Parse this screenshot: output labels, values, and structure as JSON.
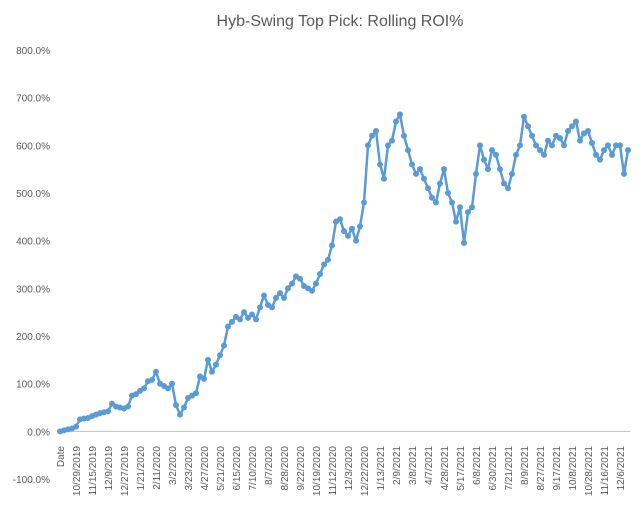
{
  "chart_data": {
    "type": "line",
    "title": "Hyb-Swing Top Pick: Rolling ROI%",
    "categories": [
      "Date",
      null,
      null,
      null,
      "10/29/2019",
      null,
      null,
      null,
      "11/15/2019",
      null,
      null,
      null,
      "12/9/2019",
      null,
      null,
      null,
      "12/27/2019",
      null,
      null,
      null,
      "1/21/2020",
      null,
      null,
      null,
      "2/11/2020",
      null,
      null,
      null,
      "3/2/2020",
      null,
      null,
      null,
      "3/23/2020",
      null,
      null,
      null,
      "4/27/2020",
      null,
      null,
      null,
      "5/21/2020",
      null,
      null,
      null,
      "6/15/2020",
      null,
      null,
      null,
      "7/10/2020",
      null,
      null,
      null,
      "8/7/2020",
      null,
      null,
      null,
      "8/28/2020",
      null,
      null,
      null,
      "9/22/2020",
      null,
      null,
      null,
      "10/19/2020",
      null,
      null,
      null,
      "11/12/2020",
      null,
      null,
      null,
      "12/3/2020",
      null,
      null,
      null,
      "12/22/2020",
      null,
      null,
      null,
      "1/13/2021",
      null,
      null,
      null,
      "2/9/2021",
      null,
      null,
      null,
      "3/8/2021",
      null,
      null,
      null,
      "4/7/2021",
      null,
      null,
      null,
      "4/28/2021",
      null,
      null,
      null,
      "5/17/2021",
      null,
      null,
      null,
      "6/8/2021",
      null,
      null,
      null,
      "6/30/2021",
      null,
      null,
      null,
      "7/21/2021",
      null,
      null,
      null,
      "8/9/2021",
      null,
      null,
      null,
      "8/27/2021",
      null,
      null,
      null,
      "9/17/2021",
      null,
      null,
      null,
      "10/8/2021",
      null,
      null,
      null,
      "10/28/2021",
      null,
      null,
      null,
      "11/16/2021",
      null,
      null,
      null,
      "12/6/2021",
      null,
      null
    ],
    "series": [
      {
        "name": "Rolling ROI%",
        "color": "#5b9bd5",
        "values": [
          0,
          2,
          4,
          6,
          10,
          25,
          27,
          28,
          32,
          35,
          38,
          40,
          42,
          58,
          52,
          50,
          48,
          52,
          75,
          78,
          85,
          90,
          105,
          108,
          125,
          100,
          95,
          90,
          100,
          55,
          35,
          50,
          70,
          75,
          80,
          115,
          110,
          150,
          125,
          140,
          160,
          180,
          220,
          230,
          240,
          235,
          250,
          238,
          245,
          235,
          260,
          285,
          265,
          260,
          280,
          290,
          280,
          300,
          310,
          325,
          320,
          305,
          300,
          295,
          310,
          330,
          350,
          360,
          390,
          440,
          445,
          420,
          410,
          425,
          400,
          430,
          480,
          600,
          620,
          630,
          560,
          530,
          600,
          610,
          650,
          665,
          620,
          590,
          560,
          540,
          550,
          530,
          510,
          490,
          480,
          520,
          550,
          500,
          480,
          440,
          470,
          395,
          460,
          470,
          540,
          600,
          570,
          550,
          590,
          580,
          550,
          520,
          510,
          540,
          580,
          600,
          660,
          640,
          620,
          600,
          590,
          580,
          610,
          600,
          620,
          615,
          600,
          630,
          640,
          650,
          610,
          625,
          630,
          605,
          580,
          570,
          590,
          600,
          580,
          600,
          600,
          540,
          590
        ]
      }
    ],
    "ylim": [
      -100,
      800
    ],
    "yticks": [
      {
        "value": -100,
        "label": "-100.0%"
      },
      {
        "value": 0,
        "label": "0.0%"
      },
      {
        "value": 100,
        "label": "100.0%"
      },
      {
        "value": 200,
        "label": "200.0%"
      },
      {
        "value": 300,
        "label": "300.0%"
      },
      {
        "value": 400,
        "label": "400.0%"
      },
      {
        "value": 500,
        "label": "500.0%"
      },
      {
        "value": 600,
        "label": "600.0%"
      },
      {
        "value": 700,
        "label": "700.0%"
      },
      {
        "value": 800,
        "label": "800.0%"
      }
    ],
    "grid": false
  }
}
